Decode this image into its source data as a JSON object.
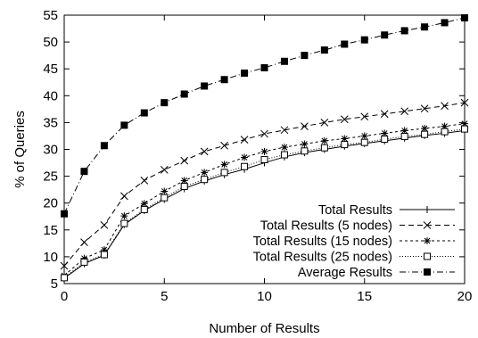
{
  "chart_data": {
    "type": "line",
    "xlabel": "Number of Results",
    "ylabel": "% of Queries",
    "xlim": [
      0,
      20
    ],
    "ylim": [
      5,
      55
    ],
    "x_ticks": [
      0,
      5,
      10,
      15,
      20
    ],
    "y_ticks": [
      5,
      10,
      15,
      20,
      25,
      30,
      35,
      40,
      45,
      50,
      55
    ],
    "grid": false,
    "legend_position": "bottom-right",
    "x": [
      0,
      1,
      2,
      3,
      4,
      5,
      6,
      7,
      8,
      9,
      10,
      11,
      12,
      13,
      14,
      15,
      16,
      17,
      18,
      19,
      20
    ],
    "series": [
      {
        "name": "Total Results",
        "marker": "plus",
        "dash": "solid",
        "values": [
          6.0,
          8.7,
          10.3,
          16.0,
          18.6,
          20.7,
          22.7,
          24.1,
          25.3,
          26.3,
          27.5,
          28.6,
          29.4,
          30.0,
          30.6,
          31.1,
          31.6,
          32.1,
          32.6,
          33.0,
          33.5
        ]
      },
      {
        "name": "Total Results (5 nodes)",
        "marker": "x",
        "dash": "dashed",
        "values": [
          8.3,
          12.7,
          15.9,
          21.3,
          24.2,
          26.2,
          27.9,
          29.6,
          30.7,
          31.8,
          32.9,
          33.6,
          34.3,
          35.0,
          35.6,
          36.1,
          36.6,
          37.1,
          37.6,
          38.1,
          38.7
        ]
      },
      {
        "name": "Total Results (15 nodes)",
        "marker": "star",
        "dash": "dotted",
        "values": [
          6.5,
          9.7,
          11.3,
          17.6,
          19.9,
          22.2,
          24.2,
          25.7,
          27.2,
          28.5,
          29.6,
          30.4,
          31.0,
          31.6,
          32.0,
          32.5,
          33.0,
          33.5,
          33.9,
          34.3,
          34.8
        ]
      },
      {
        "name": "Total Results (25 nodes)",
        "marker": "open-square",
        "dash": "fine-dotted",
        "values": [
          6.1,
          9.0,
          10.4,
          16.2,
          18.8,
          21.0,
          23.1,
          24.4,
          25.7,
          26.8,
          28.1,
          29.0,
          29.7,
          30.3,
          30.9,
          31.3,
          31.9,
          32.4,
          32.8,
          33.3,
          33.8
        ]
      },
      {
        "name": "Average Results",
        "marker": "filled-square",
        "dash": "dash-dot",
        "values": [
          18.0,
          25.9,
          30.7,
          34.5,
          36.8,
          38.7,
          40.3,
          41.8,
          43.0,
          44.2,
          45.2,
          46.4,
          47.5,
          48.5,
          49.6,
          50.4,
          51.3,
          52.1,
          52.8,
          53.6,
          54.5
        ]
      }
    ]
  }
}
